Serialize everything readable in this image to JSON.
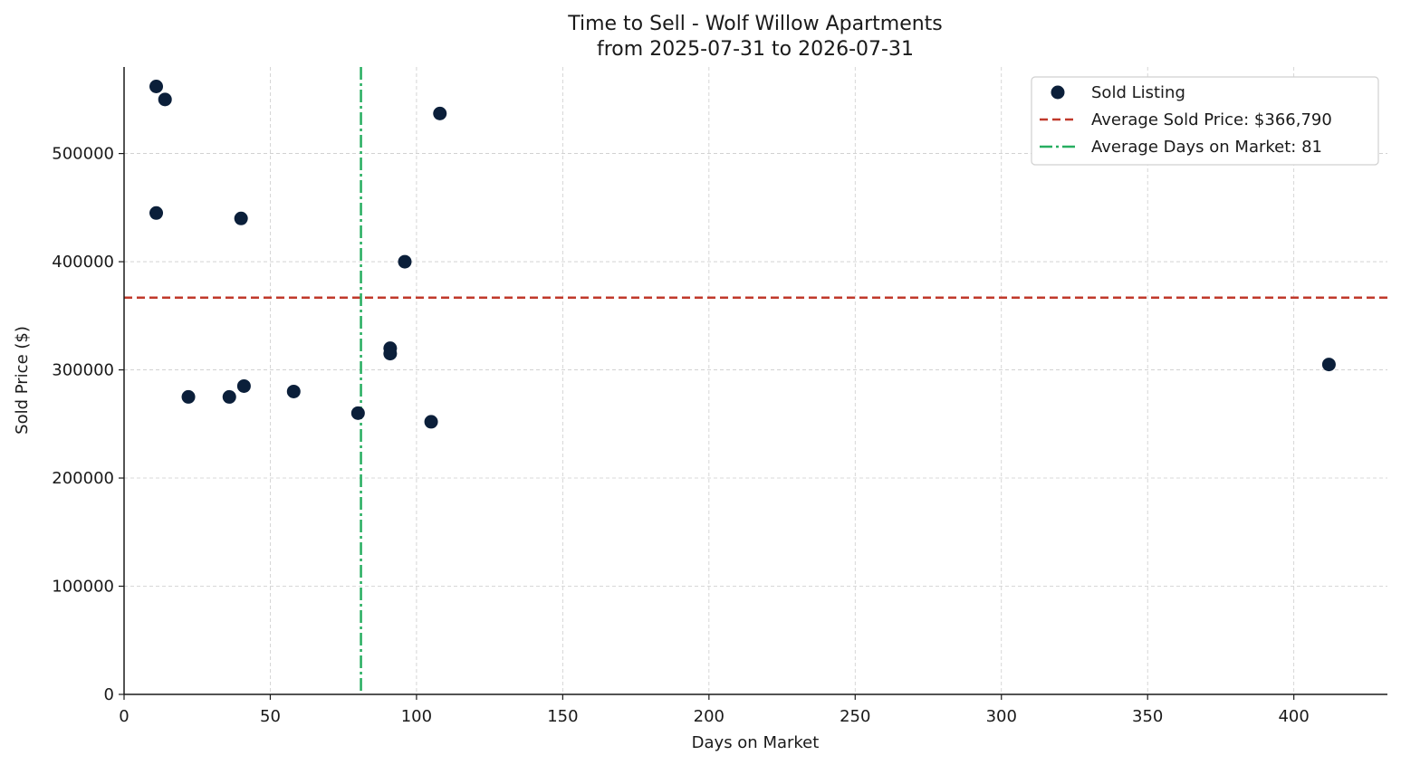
{
  "chart_data": {
    "type": "scatter",
    "title": "Time to Sell - Wolf Willow Apartments",
    "subtitle": "from 2025-07-31 to 2026-07-31",
    "xlabel": "Days on Market",
    "ylabel": "Sold Price ($)",
    "xlim": [
      0,
      432
    ],
    "ylim": [
      0,
      580000
    ],
    "xticks": [
      0,
      50,
      100,
      150,
      200,
      250,
      300,
      350,
      400
    ],
    "yticks": [
      0,
      100000,
      200000,
      300000,
      400000,
      500000
    ],
    "xtick_labels": [
      "0",
      "50",
      "100",
      "150",
      "200",
      "250",
      "300",
      "350",
      "400"
    ],
    "ytick_labels": [
      "0",
      "100000",
      "200000",
      "300000",
      "400000",
      "500000"
    ],
    "grid": true,
    "legend_position": "top-right",
    "series": [
      {
        "name": "Sold Listing",
        "color": "#0b1f3a",
        "points": [
          {
            "x": 11,
            "y": 562000
          },
          {
            "x": 14,
            "y": 550000
          },
          {
            "x": 108,
            "y": 537000
          },
          {
            "x": 11,
            "y": 445000
          },
          {
            "x": 40,
            "y": 440000
          },
          {
            "x": 96,
            "y": 400000
          },
          {
            "x": 91,
            "y": 320000
          },
          {
            "x": 91,
            "y": 315000
          },
          {
            "x": 412,
            "y": 305000
          },
          {
            "x": 41,
            "y": 285000
          },
          {
            "x": 58,
            "y": 280000
          },
          {
            "x": 22,
            "y": 275000
          },
          {
            "x": 36,
            "y": 275000
          },
          {
            "x": 80,
            "y": 260000
          },
          {
            "x": 105,
            "y": 252000
          }
        ]
      }
    ],
    "reference_lines": [
      {
        "name": "Average Sold Price: $366,790",
        "orientation": "horizontal",
        "value": 366790,
        "style": "dashed",
        "color": "#c0392b"
      },
      {
        "name": "Average Days on Market: 81",
        "orientation": "vertical",
        "value": 81,
        "style": "dashdot",
        "color": "#27ae60"
      }
    ]
  }
}
